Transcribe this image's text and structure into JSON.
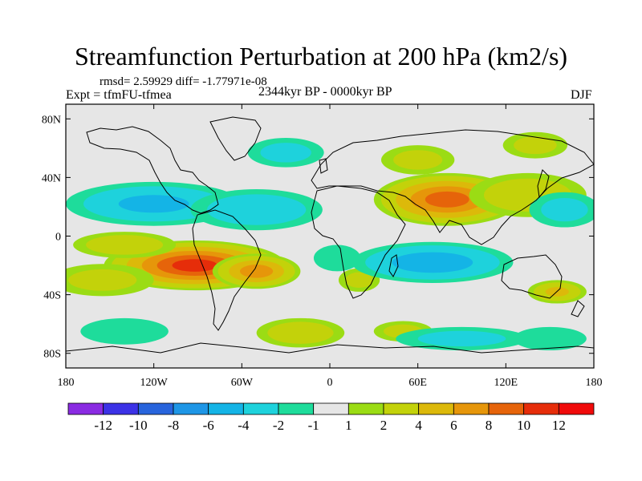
{
  "chart_data": {
    "type": "heatmap",
    "title": "Streamfunction Perturbation at 200 hPa (km2/s)",
    "stats_line": "rmsd= 2.59929 diff= -1.77971e-08",
    "experiment": "Expt = tfmFU-tfmea",
    "period": "2344kyr BP - 0000kyr BP",
    "season": "DJF",
    "x_range": [
      -180,
      180
    ],
    "y_range": [
      -90,
      90
    ],
    "x_ticks": [
      {
        "value": -180,
        "label": "180"
      },
      {
        "value": -120,
        "label": "120W"
      },
      {
        "value": -60,
        "label": "60W"
      },
      {
        "value": 0,
        "label": "0"
      },
      {
        "value": 60,
        "label": "60E"
      },
      {
        "value": 120,
        "label": "120E"
      },
      {
        "value": 180,
        "label": "180"
      }
    ],
    "y_ticks": [
      {
        "value": 80,
        "label": "80N"
      },
      {
        "value": 40,
        "label": "40N"
      },
      {
        "value": 0,
        "label": "0"
      },
      {
        "value": -40,
        "label": "40S"
      },
      {
        "value": -80,
        "label": "80S"
      }
    ],
    "colorbar": {
      "colors": [
        "#8a2be2",
        "#3c32e6",
        "#2864dc",
        "#1e96e6",
        "#14b4e6",
        "#1ed2dc",
        "#1edc9b",
        "#e6e6e6",
        "#9bdc14",
        "#c3d20a",
        "#dcb90a",
        "#e6960a",
        "#e6640a",
        "#e62d0a",
        "#f00a0a"
      ],
      "labels": [
        "-12",
        "-10",
        "-8",
        "-6",
        "-4",
        "-2",
        "-1",
        "1",
        "2",
        "4",
        "6",
        "8",
        "10",
        "12"
      ]
    },
    "anomalies": [
      {
        "lon": -92,
        "lat": -20,
        "rx": 62,
        "ry": 17,
        "value": 11
      },
      {
        "lon": -50,
        "lat": -24,
        "rx": 30,
        "ry": 12,
        "value": 7
      },
      {
        "lon": -155,
        "lat": -30,
        "rx": 35,
        "ry": 11,
        "value": 2
      },
      {
        "lon": -140,
        "lat": -6,
        "rx": 35,
        "ry": 9,
        "value": 3
      },
      {
        "lon": -20,
        "lat": -66,
        "rx": 30,
        "ry": 10,
        "value": 3
      },
      {
        "lon": 80,
        "lat": 25,
        "rx": 50,
        "ry": 18,
        "value": 9
      },
      {
        "lon": 135,
        "lat": 28,
        "rx": 40,
        "ry": 15,
        "value": 3
      },
      {
        "lon": 60,
        "lat": 52,
        "rx": 25,
        "ry": 10,
        "value": 2
      },
      {
        "lon": 140,
        "lat": 62,
        "rx": 22,
        "ry": 9,
        "value": 2
      },
      {
        "lon": 155,
        "lat": -38,
        "rx": 20,
        "ry": 8,
        "value": 4
      },
      {
        "lon": 20,
        "lat": -30,
        "rx": 14,
        "ry": 8,
        "value": 2
      },
      {
        "lon": 50,
        "lat": -65,
        "rx": 20,
        "ry": 7,
        "value": 2
      },
      {
        "lon": -120,
        "lat": 22,
        "rx": 60,
        "ry": 15,
        "value": -4
      },
      {
        "lon": -50,
        "lat": 18,
        "rx": 45,
        "ry": 14,
        "value": -3
      },
      {
        "lon": 70,
        "lat": -18,
        "rx": 55,
        "ry": 14,
        "value": -5
      },
      {
        "lon": -30,
        "lat": 57,
        "rx": 26,
        "ry": 10,
        "value": -2
      },
      {
        "lon": 160,
        "lat": 18,
        "rx": 24,
        "ry": 12,
        "value": -2
      },
      {
        "lon": 90,
        "lat": -70,
        "rx": 45,
        "ry": 8,
        "value": -2
      },
      {
        "lon": -140,
        "lat": -65,
        "rx": 30,
        "ry": 9,
        "value": -1
      },
      {
        "lon": 150,
        "lat": -70,
        "rx": 25,
        "ry": 8,
        "value": -1
      },
      {
        "lon": 5,
        "lat": -15,
        "rx": 16,
        "ry": 9,
        "value": -1
      }
    ]
  }
}
